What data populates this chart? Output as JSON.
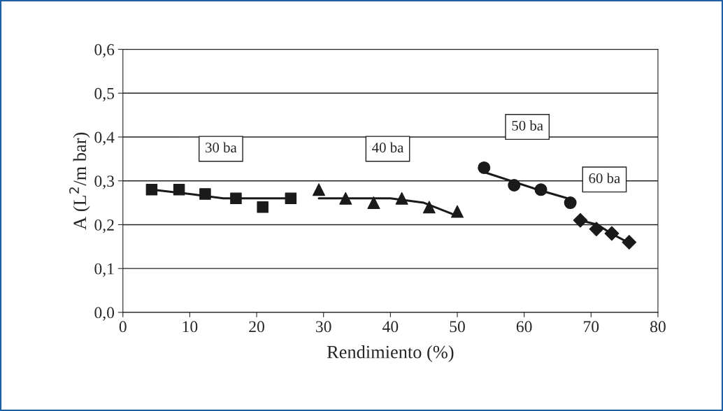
{
  "chart_data": {
    "type": "scatter",
    "xlabel": "Rendimiento (%)",
    "ylabel": "A (L$^{2}$/m bar)",
    "xlim": [
      0,
      80
    ],
    "xticks": [
      0,
      10,
      20,
      30,
      40,
      50,
      60,
      70,
      80
    ],
    "ylim": [
      0,
      0.6
    ],
    "yticks": [
      {
        "value": 0,
        "label": "0,0"
      },
      {
        "value": 0.1,
        "label": "0,1"
      },
      {
        "value": 0.2,
        "label": "0,2"
      },
      {
        "value": 0.3,
        "label": "0,3"
      },
      {
        "value": 0.4,
        "label": "0,4"
      },
      {
        "value": 0.5,
        "label": "0,5"
      },
      {
        "value": 0.6,
        "label": "0,6"
      }
    ],
    "grid": "y",
    "series": [
      {
        "name": "30 ba",
        "marker": "square",
        "color": "#1a1a1a",
        "x": [
          4.3,
          8.4,
          12.3,
          16.9,
          20.9,
          25.1
        ],
        "values": [
          0.28,
          0.28,
          0.27,
          0.26,
          0.24,
          0.26
        ]
      },
      {
        "name": "40 ba",
        "marker": "triangle",
        "color": "#1a1a1a",
        "x": [
          29.3,
          33.3,
          37.5,
          41.7,
          45.8,
          50.0
        ],
        "values": [
          0.28,
          0.26,
          0.25,
          0.26,
          0.24,
          0.23
        ]
      },
      {
        "name": "50 ba",
        "marker": "circle",
        "color": "#1a1a1a",
        "x": [
          54.0,
          58.5,
          62.5,
          66.9
        ],
        "values": [
          0.33,
          0.29,
          0.28,
          0.25
        ]
      },
      {
        "name": "60 ba",
        "marker": "diamond",
        "color": "#1a1a1a",
        "x": [
          68.4,
          70.8,
          73.1,
          75.7
        ],
        "values": [
          0.21,
          0.19,
          0.18,
          0.16
        ]
      },
      {
        "type": "line",
        "marker": "none",
        "color": "#1a1a1a",
        "x": [
          4.3,
          10,
          15,
          20,
          25
        ],
        "values": [
          0.28,
          0.27,
          0.26,
          0.26,
          0.26
        ]
      },
      {
        "type": "line",
        "marker": "none",
        "color": "#1a1a1a",
        "x": [
          29.3,
          35,
          40,
          45,
          50
        ],
        "values": [
          0.26,
          0.26,
          0.26,
          0.25,
          0.22
        ]
      },
      {
        "type": "line",
        "marker": "none",
        "color": "#1a1a1a",
        "x": [
          54,
          58,
          62,
          66.5
        ],
        "values": [
          0.32,
          0.3,
          0.28,
          0.26
        ]
      },
      {
        "type": "line",
        "marker": "none",
        "color": "#1a1a1a",
        "x": [
          68.4,
          71,
          73,
          75.5
        ],
        "values": [
          0.21,
          0.2,
          0.18,
          0.16
        ]
      }
    ]
  }
}
